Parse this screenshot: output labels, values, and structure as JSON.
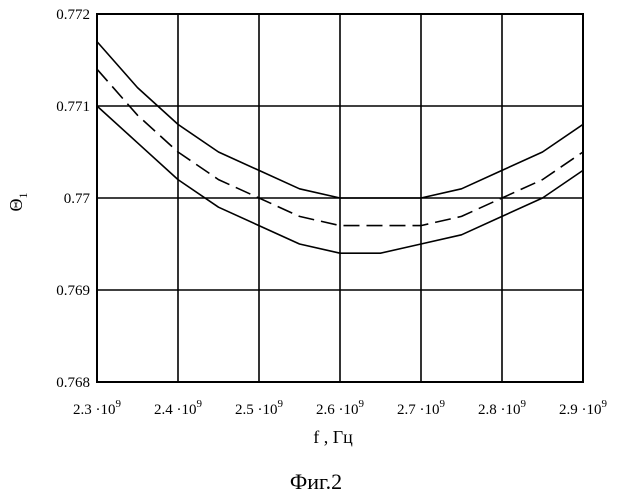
{
  "chart_data": {
    "type": "line",
    "title": "",
    "xlabel": "f , Гц",
    "ylabel": "Θ",
    "ylabel_sub": "1",
    "caption": "Фиг.2",
    "xlim": [
      2300000000,
      2900000000
    ],
    "ylim": [
      0.768,
      0.772
    ],
    "grid": true,
    "x_ticks": [
      {
        "value": 2300000000,
        "mant": "2.3",
        "exp": "9"
      },
      {
        "value": 2400000000,
        "mant": "2.4",
        "exp": "9"
      },
      {
        "value": 2500000000,
        "mant": "2.5",
        "exp": "9"
      },
      {
        "value": 2600000000,
        "mant": "2.6",
        "exp": "9"
      },
      {
        "value": 2700000000,
        "mant": "2.7",
        "exp": "9"
      },
      {
        "value": 2800000000,
        "mant": "2.8",
        "exp": "9"
      },
      {
        "value": 2900000000,
        "mant": "2.9",
        "exp": "9"
      }
    ],
    "y_ticks": [
      {
        "value": 0.768,
        "label": "0.768"
      },
      {
        "value": 0.769,
        "label": "0.769"
      },
      {
        "value": 0.77,
        "label": "0.77"
      },
      {
        "value": 0.771,
        "label": "0.771"
      },
      {
        "value": 0.772,
        "label": "0.772"
      }
    ],
    "x": [
      2300000000,
      2350000000,
      2400000000,
      2450000000,
      2500000000,
      2550000000,
      2600000000,
      2650000000,
      2700000000,
      2750000000,
      2800000000,
      2850000000,
      2900000000
    ],
    "series": [
      {
        "style": "solid",
        "values": [
          0.7717,
          0.7712,
          0.7708,
          0.7705,
          0.7703,
          0.7701,
          0.77,
          0.77,
          0.77,
          0.7701,
          0.7703,
          0.7705,
          0.7708
        ]
      },
      {
        "style": "dashed",
        "values": [
          0.7714,
          0.7709,
          0.7705,
          0.7702,
          0.77,
          0.7698,
          0.7697,
          0.7697,
          0.7697,
          0.7698,
          0.77,
          0.7702,
          0.7705
        ]
      },
      {
        "style": "solid",
        "values": [
          0.771,
          0.7706,
          0.7702,
          0.7699,
          0.7697,
          0.7695,
          0.7694,
          0.7694,
          0.7695,
          0.7696,
          0.7698,
          0.77,
          0.7703
        ]
      }
    ]
  }
}
